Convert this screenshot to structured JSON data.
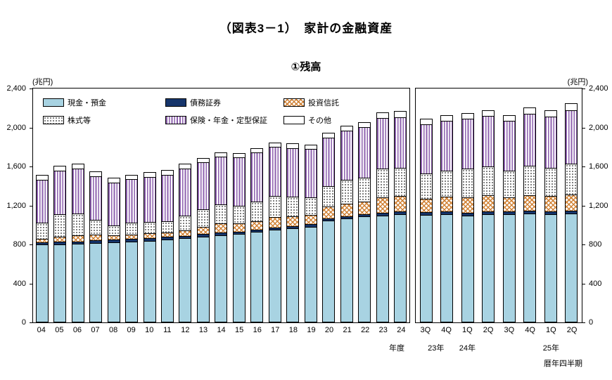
{
  "title": "（図表3－1）　家計の金融資産",
  "subtitle": "①残高",
  "unit_left": "(兆円)",
  "unit_right": "(兆円)",
  "axis_note_annual": "年度",
  "axis_note_quarterly": "暦年四半期",
  "chart_data": {
    "type": "bar",
    "stacked": true,
    "title": "（図表3－1）　家計の金融資産",
    "subtitle": "①残高",
    "unit": "兆円",
    "ylim": [
      0,
      2400
    ],
    "yticks": [
      0,
      400,
      800,
      1200,
      1600,
      2000,
      2400
    ],
    "ytick_labels": [
      "0",
      "400",
      "800",
      "1,200",
      "1,600",
      "2,000",
      "2,400"
    ],
    "grid": false,
    "legend_position": "top-left-inside",
    "series": [
      {
        "key": "cash",
        "label": "現金・預金",
        "color": "#a8d3e2",
        "pattern": "solid"
      },
      {
        "key": "debt",
        "label": "債務証券",
        "color": "#16356b",
        "pattern": "solid"
      },
      {
        "key": "trust",
        "label": "投資信託",
        "color": "#d08236",
        "pattern": "crosshatch"
      },
      {
        "key": "equity",
        "label": "株式等",
        "color": "#222222",
        "pattern": "dots"
      },
      {
        "key": "insurance",
        "label": "保険・年金・定型保証",
        "color": "#8d60ae",
        "pattern": "vertical-stripes"
      },
      {
        "key": "other",
        "label": "その他",
        "color": "#ffffff",
        "pattern": "solid"
      }
    ],
    "panels": [
      {
        "name": "annual",
        "axis_note": "年度",
        "categories": [
          "04",
          "05",
          "06",
          "07",
          "08",
          "09",
          "10",
          "11",
          "12",
          "13",
          "14",
          "15",
          "16",
          "17",
          "18",
          "19",
          "20",
          "21",
          "22",
          "23",
          "24"
        ],
        "values": {
          "cash": [
            790,
            795,
            800,
            810,
            815,
            820,
            830,
            845,
            855,
            875,
            890,
            900,
            920,
            945,
            960,
            975,
            1035,
            1058,
            1080,
            1090,
            1100
          ],
          "debt": [
            25,
            25,
            25,
            28,
            30,
            30,
            30,
            30,
            28,
            27,
            26,
            25,
            24,
            23,
            23,
            24,
            26,
            26,
            26,
            28,
            29
          ],
          "trust": [
            34,
            52,
            60,
            55,
            40,
            45,
            45,
            44,
            55,
            72,
            90,
            85,
            90,
            105,
            100,
            100,
            120,
            130,
            125,
            155,
            160
          ],
          "equity": [
            170,
            230,
            225,
            150,
            100,
            120,
            118,
            115,
            150,
            180,
            200,
            180,
            200,
            220,
            200,
            180,
            210,
            240,
            245,
            300,
            290
          ],
          "insurance": [
            440,
            448,
            460,
            452,
            445,
            445,
            460,
            470,
            480,
            480,
            490,
            495,
            500,
            500,
            500,
            495,
            500,
            507,
            520,
            520,
            520
          ],
          "other": [
            51,
            50,
            50,
            50,
            50,
            50,
            55,
            56,
            52,
            46,
            44,
            45,
            46,
            47,
            47,
            46,
            49,
            49,
            54,
            57,
            61
          ]
        },
        "totals": [
          1510,
          1600,
          1620,
          1545,
          1480,
          1510,
          1538,
          1560,
          1620,
          1680,
          1740,
          1730,
          1780,
          1840,
          1830,
          1820,
          1940,
          2010,
          2050,
          2150,
          2160
        ]
      },
      {
        "name": "quarterly",
        "axis_note": "暦年四半期",
        "categories": [
          "3Q",
          "4Q",
          "1Q",
          "2Q",
          "3Q",
          "4Q",
          "1Q",
          "2Q"
        ],
        "year_labels": [
          {
            "label": "23年",
            "slot": 0.5
          },
          {
            "label": "24年",
            "slot": 2
          },
          {
            "label": "25年",
            "slot": 6
          }
        ],
        "values": {
          "cash": [
            1095,
            1105,
            1090,
            1105,
            1100,
            1110,
            1105,
            1110
          ],
          "debt": [
            28,
            28,
            28,
            29,
            29,
            30,
            30,
            30
          ],
          "trust": [
            140,
            150,
            160,
            160,
            150,
            160,
            155,
            165
          ],
          "equity": [
            260,
            270,
            295,
            300,
            270,
            300,
            290,
            320
          ],
          "insurance": [
            500,
            510,
            510,
            515,
            510,
            535,
            525,
            545
          ],
          "other": [
            57,
            57,
            57,
            61,
            61,
            65,
            65,
            70
          ]
        },
        "totals": [
          2080,
          2120,
          2140,
          2170,
          2120,
          2200,
          2170,
          2240
        ]
      }
    ]
  }
}
